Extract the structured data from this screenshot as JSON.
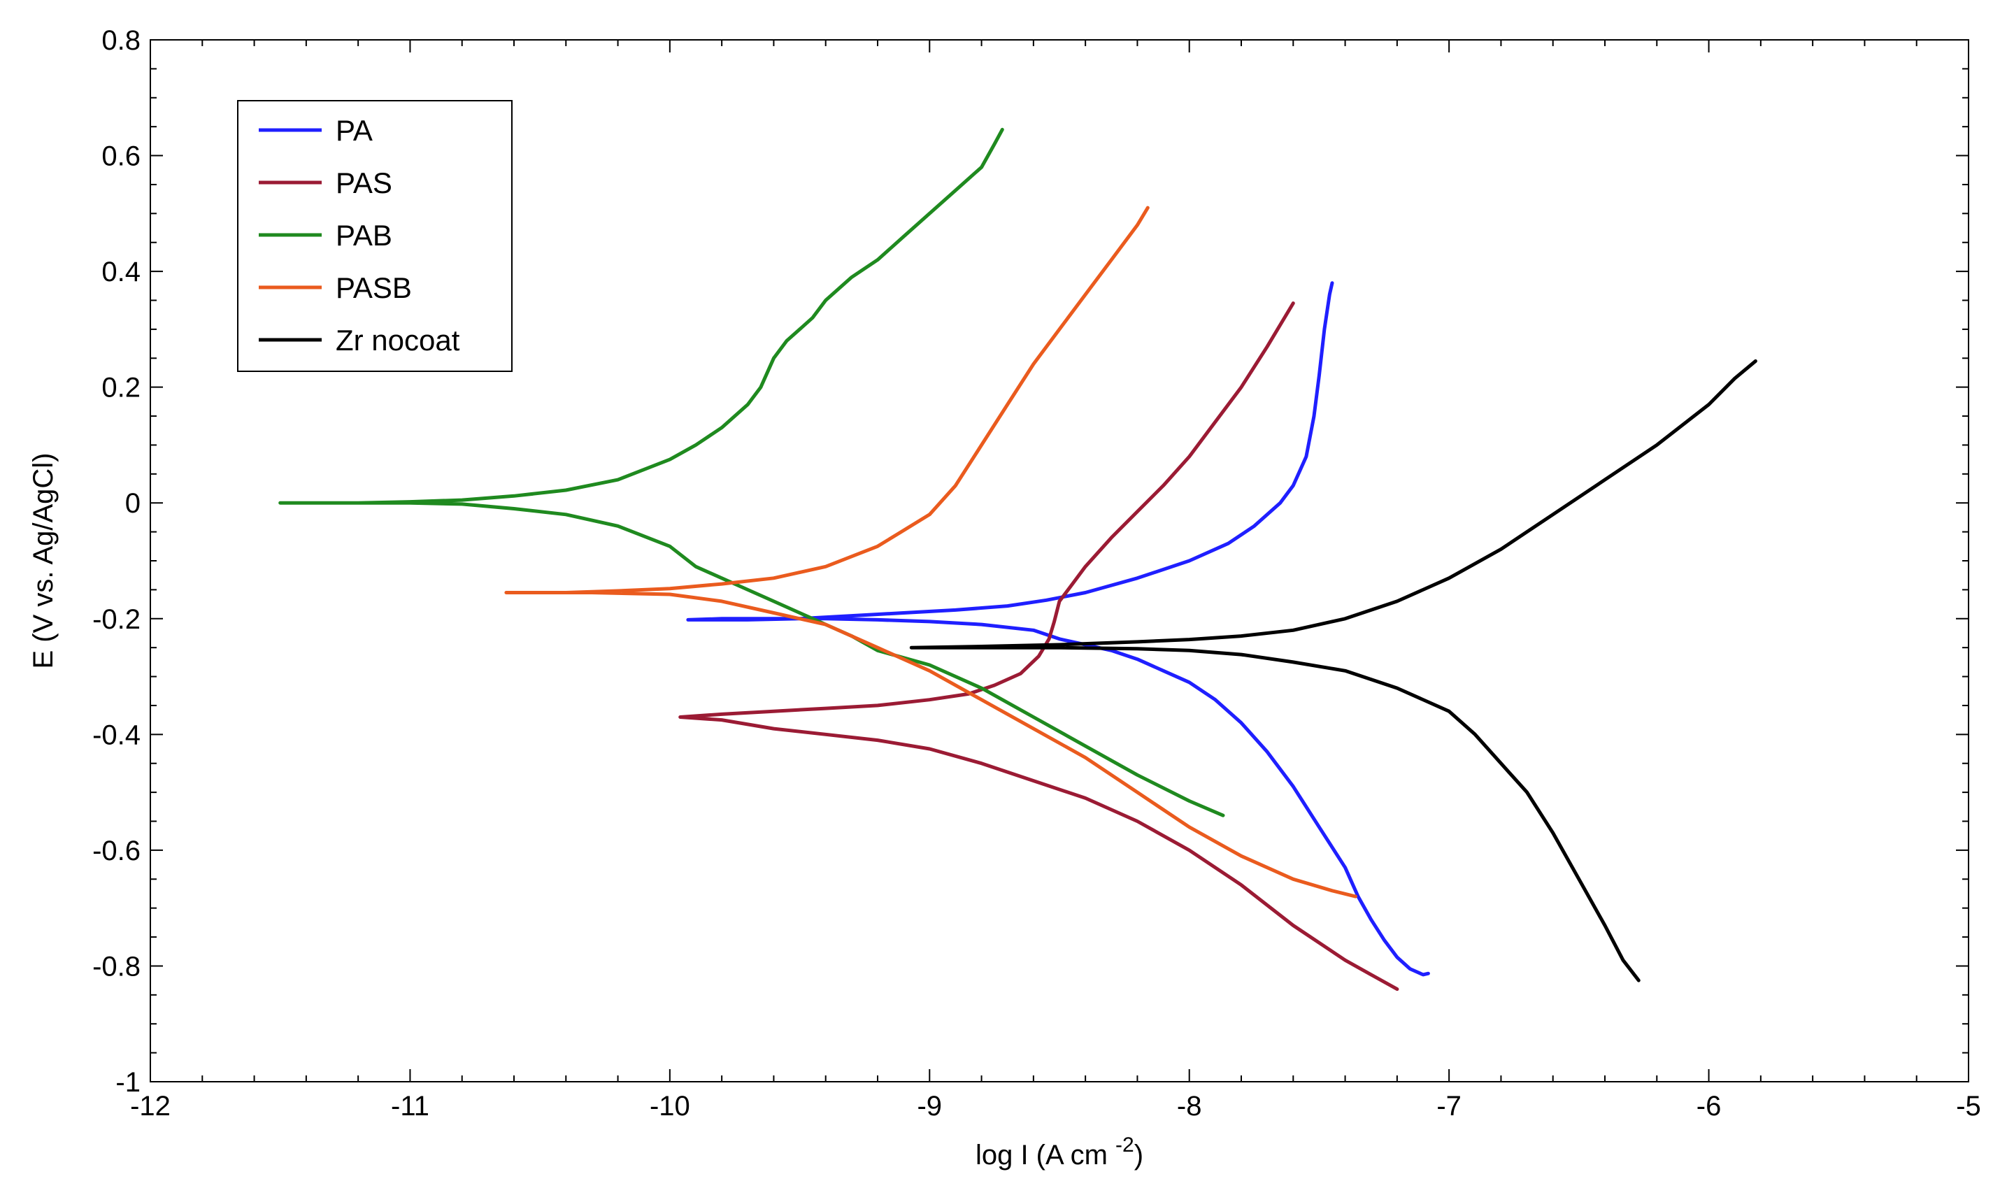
{
  "chart_data": {
    "type": "line",
    "title": "",
    "xlabel": "log I (A cm",
    "xlabel_superscript": "-2",
    "xlabel_suffix": ")",
    "ylabel": "E (V vs. Ag/AgCl)",
    "xlim": [
      -12,
      -5
    ],
    "ylim": [
      -1,
      0.8
    ],
    "x_ticks": [
      -12,
      -11,
      -10,
      -9,
      -8,
      -7,
      -6,
      -5
    ],
    "x_tick_labels": [
      "-12",
      "-11",
      "-10",
      "-9",
      "-8",
      "-7",
      "-6",
      "-5"
    ],
    "y_ticks": [
      0.8,
      0.6,
      0.4,
      0.2,
      0,
      -0.2,
      -0.4,
      -0.6,
      -0.8,
      -1
    ],
    "y_tick_labels": [
      "0.8",
      "0.6",
      "0.4",
      "0.2",
      "0",
      "-0.2",
      "-0.4",
      "-0.6",
      "-0.8",
      "-1"
    ],
    "legend_position": "top-left",
    "series": [
      {
        "name": "PA",
        "color": "#1f1fff",
        "points": [
          [
            -9.93,
            -0.202
          ],
          [
            -9.8,
            -0.2
          ],
          [
            -9.6,
            -0.2
          ],
          [
            -9.4,
            -0.2
          ],
          [
            -9.2,
            -0.202
          ],
          [
            -9.0,
            -0.205
          ],
          [
            -8.8,
            -0.21
          ],
          [
            -8.6,
            -0.22
          ],
          [
            -8.5,
            -0.235
          ],
          [
            -8.4,
            -0.245
          ],
          [
            -8.3,
            -0.255
          ],
          [
            -8.2,
            -0.27
          ],
          [
            -8.1,
            -0.29
          ],
          [
            -8.0,
            -0.31
          ],
          [
            -7.9,
            -0.34
          ],
          [
            -7.8,
            -0.38
          ],
          [
            -7.7,
            -0.43
          ],
          [
            -7.6,
            -0.49
          ],
          [
            -7.5,
            -0.56
          ],
          [
            -7.4,
            -0.63
          ],
          [
            -7.35,
            -0.68
          ],
          [
            -7.3,
            -0.72
          ],
          [
            -7.25,
            -0.755
          ],
          [
            -7.2,
            -0.785
          ],
          [
            -7.15,
            -0.805
          ],
          [
            -7.1,
            -0.815
          ],
          [
            -7.08,
            -0.813
          ],
          null,
          [
            -9.93,
            -0.202
          ],
          [
            -9.7,
            -0.202
          ],
          [
            -9.5,
            -0.2
          ],
          [
            -9.3,
            -0.195
          ],
          [
            -9.1,
            -0.19
          ],
          [
            -8.9,
            -0.185
          ],
          [
            -8.7,
            -0.178
          ],
          [
            -8.55,
            -0.168
          ],
          [
            -8.4,
            -0.155
          ],
          [
            -8.2,
            -0.13
          ],
          [
            -8.0,
            -0.1
          ],
          [
            -7.85,
            -0.07
          ],
          [
            -7.75,
            -0.04
          ],
          [
            -7.65,
            0.0
          ],
          [
            -7.6,
            0.03
          ],
          [
            -7.55,
            0.08
          ],
          [
            -7.52,
            0.15
          ],
          [
            -7.5,
            0.22
          ],
          [
            -7.48,
            0.3
          ],
          [
            -7.46,
            0.36
          ],
          [
            -7.45,
            0.38
          ]
        ]
      },
      {
        "name": "PAS",
        "color": "#9b1b34",
        "points": [
          [
            -9.96,
            -0.37
          ],
          [
            -9.8,
            -0.375
          ],
          [
            -9.6,
            -0.39
          ],
          [
            -9.4,
            -0.4
          ],
          [
            -9.2,
            -0.41
          ],
          [
            -9.0,
            -0.425
          ],
          [
            -8.8,
            -0.45
          ],
          [
            -8.6,
            -0.48
          ],
          [
            -8.4,
            -0.51
          ],
          [
            -8.2,
            -0.55
          ],
          [
            -8.0,
            -0.6
          ],
          [
            -7.8,
            -0.66
          ],
          [
            -7.6,
            -0.73
          ],
          [
            -7.4,
            -0.79
          ],
          [
            -7.3,
            -0.815
          ],
          [
            -7.2,
            -0.84
          ],
          null,
          [
            -9.96,
            -0.37
          ],
          [
            -9.8,
            -0.365
          ],
          [
            -9.6,
            -0.36
          ],
          [
            -9.4,
            -0.355
          ],
          [
            -9.2,
            -0.35
          ],
          [
            -9.0,
            -0.34
          ],
          [
            -8.85,
            -0.33
          ],
          [
            -8.75,
            -0.315
          ],
          [
            -8.65,
            -0.295
          ],
          [
            -8.58,
            -0.265
          ],
          [
            -8.54,
            -0.235
          ],
          [
            -8.52,
            -0.205
          ],
          [
            -8.5,
            -0.17
          ],
          [
            -8.45,
            -0.14
          ],
          [
            -8.4,
            -0.11
          ],
          [
            -8.3,
            -0.06
          ],
          [
            -8.2,
            -0.015
          ],
          [
            -8.1,
            0.03
          ],
          [
            -8.0,
            0.08
          ],
          [
            -7.9,
            0.14
          ],
          [
            -7.8,
            0.2
          ],
          [
            -7.7,
            0.27
          ],
          [
            -7.6,
            0.345
          ]
        ]
      },
      {
        "name": "PAB",
        "color": "#1f8a1f",
        "points": [
          [
            -11.5,
            0.0
          ],
          [
            -11.2,
            0.0
          ],
          [
            -11.0,
            0.0
          ],
          [
            -10.8,
            -0.002
          ],
          [
            -10.6,
            -0.01
          ],
          [
            -10.4,
            -0.02
          ],
          [
            -10.2,
            -0.04
          ],
          [
            -10.0,
            -0.075
          ],
          [
            -9.9,
            -0.11
          ],
          [
            -9.8,
            -0.13
          ],
          [
            -9.7,
            -0.15
          ],
          [
            -9.6,
            -0.17
          ],
          [
            -9.5,
            -0.19
          ],
          [
            -9.4,
            -0.21
          ],
          [
            -9.3,
            -0.23
          ],
          [
            -9.2,
            -0.255
          ],
          [
            -9.0,
            -0.28
          ],
          [
            -8.8,
            -0.32
          ],
          [
            -8.6,
            -0.37
          ],
          [
            -8.4,
            -0.42
          ],
          [
            -8.2,
            -0.47
          ],
          [
            -8.0,
            -0.515
          ],
          [
            -7.87,
            -0.54
          ],
          null,
          [
            -11.5,
            0.0
          ],
          [
            -11.2,
            0.0
          ],
          [
            -11.0,
            0.002
          ],
          [
            -10.8,
            0.005
          ],
          [
            -10.6,
            0.012
          ],
          [
            -10.4,
            0.022
          ],
          [
            -10.2,
            0.04
          ],
          [
            -10.0,
            0.075
          ],
          [
            -9.9,
            0.1
          ],
          [
            -9.8,
            0.13
          ],
          [
            -9.7,
            0.17
          ],
          [
            -9.65,
            0.2
          ],
          [
            -9.6,
            0.25
          ],
          [
            -9.55,
            0.28
          ],
          [
            -9.5,
            0.3
          ],
          [
            -9.45,
            0.32
          ],
          [
            -9.4,
            0.35
          ],
          [
            -9.3,
            0.39
          ],
          [
            -9.2,
            0.42
          ],
          [
            -9.1,
            0.46
          ],
          [
            -9.0,
            0.5
          ],
          [
            -8.9,
            0.54
          ],
          [
            -8.8,
            0.58
          ],
          [
            -8.75,
            0.62
          ],
          [
            -8.72,
            0.645
          ]
        ]
      },
      {
        "name": "PASB",
        "color": "#ea5b1e",
        "points": [
          [
            -10.63,
            -0.155
          ],
          [
            -10.4,
            -0.155
          ],
          [
            -10.2,
            -0.152
          ],
          [
            -10.0,
            -0.148
          ],
          [
            -9.8,
            -0.14
          ],
          [
            -9.6,
            -0.13
          ],
          [
            -9.4,
            -0.11
          ],
          [
            -9.2,
            -0.075
          ],
          [
            -9.0,
            -0.02
          ],
          [
            -8.9,
            0.03
          ],
          [
            -8.8,
            0.1
          ],
          [
            -8.7,
            0.17
          ],
          [
            -8.6,
            0.24
          ],
          [
            -8.5,
            0.3
          ],
          [
            -8.4,
            0.36
          ],
          [
            -8.3,
            0.42
          ],
          [
            -8.2,
            0.48
          ],
          [
            -8.16,
            0.51
          ],
          null,
          [
            -10.63,
            -0.155
          ],
          [
            -10.3,
            -0.155
          ],
          [
            -10.0,
            -0.158
          ],
          [
            -9.8,
            -0.17
          ],
          [
            -9.6,
            -0.19
          ],
          [
            -9.4,
            -0.21
          ],
          [
            -9.2,
            -0.25
          ],
          [
            -9.0,
            -0.29
          ],
          [
            -8.8,
            -0.34
          ],
          [
            -8.6,
            -0.39
          ],
          [
            -8.4,
            -0.44
          ],
          [
            -8.2,
            -0.5
          ],
          [
            -8.0,
            -0.56
          ],
          [
            -7.8,
            -0.61
          ],
          [
            -7.6,
            -0.65
          ],
          [
            -7.45,
            -0.67
          ],
          [
            -7.36,
            -0.68
          ]
        ]
      },
      {
        "name": "Zr nocoat",
        "color": "#000000",
        "points": [
          [
            -9.07,
            -0.25
          ],
          [
            -8.8,
            -0.25
          ],
          [
            -8.5,
            -0.25
          ],
          [
            -8.2,
            -0.252
          ],
          [
            -8.0,
            -0.255
          ],
          [
            -7.8,
            -0.262
          ],
          [
            -7.6,
            -0.275
          ],
          [
            -7.4,
            -0.29
          ],
          [
            -7.2,
            -0.32
          ],
          [
            -7.0,
            -0.36
          ],
          [
            -6.9,
            -0.4
          ],
          [
            -6.8,
            -0.45
          ],
          [
            -6.7,
            -0.5
          ],
          [
            -6.6,
            -0.57
          ],
          [
            -6.5,
            -0.65
          ],
          [
            -6.4,
            -0.73
          ],
          [
            -6.33,
            -0.79
          ],
          [
            -6.27,
            -0.825
          ],
          null,
          [
            -9.07,
            -0.25
          ],
          [
            -8.8,
            -0.248
          ],
          [
            -8.5,
            -0.245
          ],
          [
            -8.2,
            -0.24
          ],
          [
            -8.0,
            -0.236
          ],
          [
            -7.8,
            -0.23
          ],
          [
            -7.6,
            -0.22
          ],
          [
            -7.4,
            -0.2
          ],
          [
            -7.2,
            -0.17
          ],
          [
            -7.0,
            -0.13
          ],
          [
            -6.8,
            -0.08
          ],
          [
            -6.6,
            -0.02
          ],
          [
            -6.4,
            0.04
          ],
          [
            -6.2,
            0.1
          ],
          [
            -6.0,
            0.17
          ],
          [
            -5.9,
            0.215
          ],
          [
            -5.82,
            0.245
          ]
        ]
      }
    ]
  }
}
